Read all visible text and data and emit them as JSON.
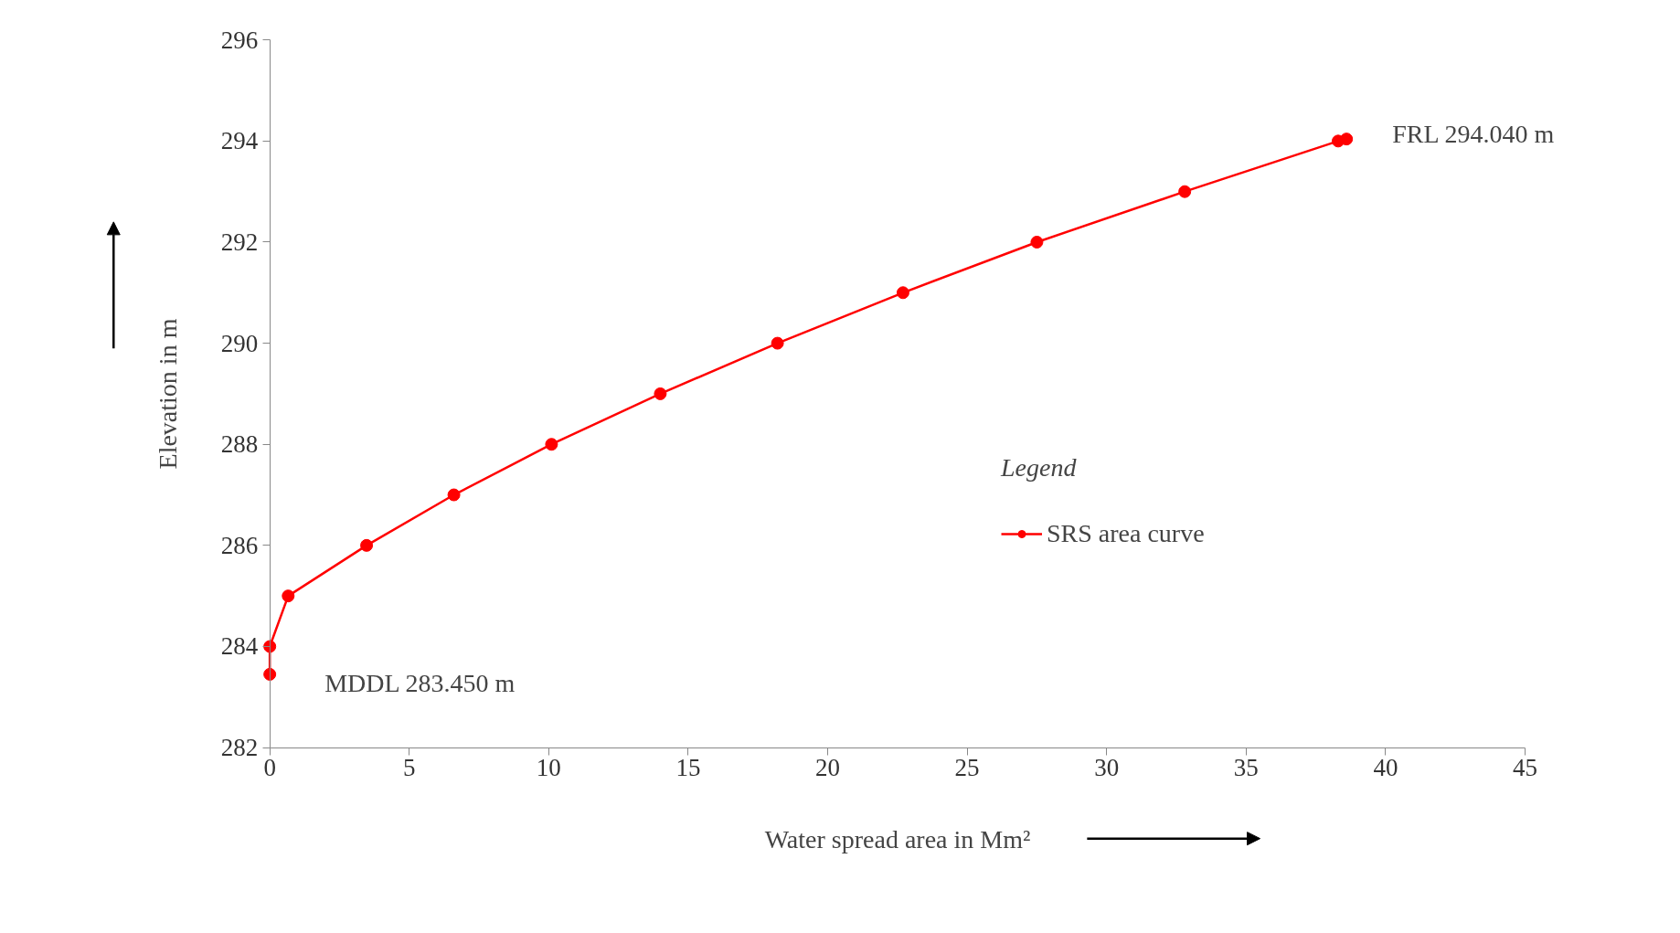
{
  "chart_data": {
    "type": "line",
    "xlabel": "Water spread area in Mm²",
    "ylabel": "Elevation in m",
    "legend_title": "Legend",
    "x": [
      0,
      0,
      0.66,
      3.47,
      6.6,
      10.1,
      14.0,
      18.2,
      22.7,
      27.5,
      32.8,
      38.3,
      38.6
    ],
    "series": [
      {
        "name": "SRS area curve",
        "color": "#ff0000",
        "values": [
          283.45,
          284,
          285,
          286,
          287,
          288,
          289,
          290,
          291,
          292,
          293,
          294,
          294.04
        ]
      }
    ],
    "xlim": [
      0,
      45
    ],
    "xticks": [
      0,
      5,
      10,
      15,
      20,
      25,
      30,
      35,
      40,
      45
    ],
    "ylim": [
      282,
      296
    ],
    "yticks": [
      282,
      284,
      286,
      288,
      290,
      292,
      294,
      296
    ],
    "annotations": [
      {
        "text": "FRL 294.040 m",
        "x": 38.6,
        "y": 294.04
      },
      {
        "text": "MDDL 283.450 m",
        "x": 0,
        "y": 283.45
      }
    ],
    "marker": "circle",
    "line_style": "solid",
    "grid": false,
    "legend": "right"
  }
}
